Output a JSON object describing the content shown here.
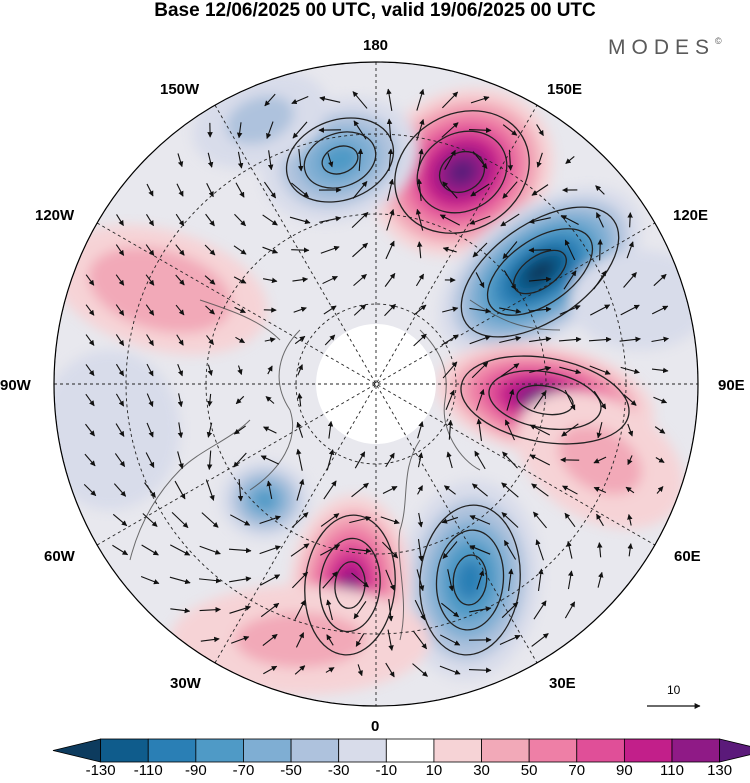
{
  "title": "Base 12/06/2025 00 UTC, valid 19/06/2025 00 UTC",
  "brand": "MODES",
  "brand_mark": "©",
  "longitude_labels": {
    "lon_180": "180",
    "lon_150w": "150W",
    "lon_150e": "150E",
    "lon_120w": "120W",
    "lon_120e": "120E",
    "lon_90w": "90W",
    "lon_90e": "90E",
    "lon_60w": "60W",
    "lon_60e": "60E",
    "lon_30w": "30W",
    "lon_30e": "30E",
    "lon_0": "0"
  },
  "reference_vector": {
    "value": "10"
  },
  "colorbar": {
    "ticks": [
      "-130",
      "-110",
      "-90",
      "-70",
      "-50",
      "-30",
      "-10",
      "10",
      "30",
      "50",
      "70",
      "90",
      "110",
      "130"
    ],
    "colors": [
      "#0d3b5e",
      "#0f5c8c",
      "#2a7fb5",
      "#4f9ac6",
      "#7faed3",
      "#aec2dd",
      "#d8dcea",
      "#ffffff",
      "#f6d3d6",
      "#f2a9b8",
      "#ee7fa6",
      "#e04f98",
      "#c21f8a",
      "#8f1a86",
      "#5b1a7a"
    ]
  },
  "map": {
    "projection": "north-polar-stereographic",
    "anomaly_centers": [
      {
        "lon": "150E",
        "sign": "positive",
        "strength": "strong"
      },
      {
        "lon": "120E",
        "sign": "negative",
        "strength": "strong"
      },
      {
        "lon": "90E",
        "sign": "positive",
        "strength": "strong"
      },
      {
        "lon": "30E",
        "sign": "negative",
        "strength": "moderate"
      },
      {
        "lon": "0",
        "sign": "positive",
        "strength": "strong"
      },
      {
        "lon": "60W",
        "sign": "negative",
        "strength": "weak"
      },
      {
        "lon": "180",
        "sign": "negative",
        "strength": "moderate"
      },
      {
        "lon": "120W",
        "sign": "positive",
        "strength": "weak"
      }
    ]
  }
}
